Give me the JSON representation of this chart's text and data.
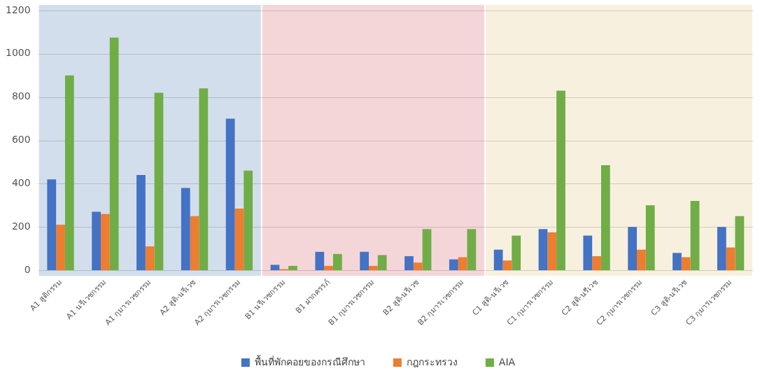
{
  "chart_data": {
    "type": "bar",
    "categories": [
      "A1 สูติกรรม",
      "A1 นรีเวชกรรม",
      "A1 กุมารเวชกรรม",
      "A2 สูติ-นรีเวช",
      "A2 กุมารเวชกรรม",
      "B1 นรีเวชกรรม",
      "B1 ฝากครรภ์",
      "B1 กุมารเวชกรรม",
      "B2 สูติ-นรีเวช",
      "B2 กุมารเวชกรรม",
      "C1 สูติ-นรีเวช",
      "C1 กุมารเวชกรรม",
      "C2 สูติ-นรีเวช",
      "C2 กุมารเวชกรรม",
      "C3 สูติ-นรีเวช",
      "C3 กุมารเวชกรรม"
    ],
    "series": [
      {
        "name": "พื้นที่พักคอยของกรณีศึกษา",
        "color": "#4472c4",
        "values": [
          420,
          270,
          440,
          380,
          700,
          25,
          85,
          85,
          65,
          50,
          95,
          190,
          160,
          200,
          80,
          200
        ]
      },
      {
        "name": "กฎกระทรวง",
        "color": "#ed7d31",
        "values": [
          210,
          260,
          110,
          250,
          285,
          5,
          20,
          20,
          35,
          60,
          45,
          175,
          65,
          95,
          60,
          105
        ]
      },
      {
        "name": "AIA",
        "color": "#70ad47",
        "values": [
          900,
          1075,
          820,
          840,
          460,
          20,
          75,
          70,
          190,
          190,
          160,
          830,
          485,
          300,
          320,
          250
        ]
      }
    ],
    "ylim": [
      0,
      1200
    ],
    "yticks": [
      0,
      200,
      400,
      600,
      800,
      1000,
      1200
    ],
    "grid": "y",
    "legend": "bottom",
    "bands": [
      {
        "axis": "x",
        "from": "A1 สูติกรรม",
        "to": "A2 กุมารเวชกรรม",
        "color": "#d3deec"
      },
      {
        "axis": "x",
        "from": "B1 นรีเวชกรรม",
        "to": "B2 กุมารเวชกรรม",
        "color": "#f5d6d8"
      },
      {
        "axis": "x",
        "from": "C1 สูติ-นรีเวช",
        "to": "C3 กุมารเวชกรรม",
        "color": "#f7f0de"
      }
    ]
  }
}
